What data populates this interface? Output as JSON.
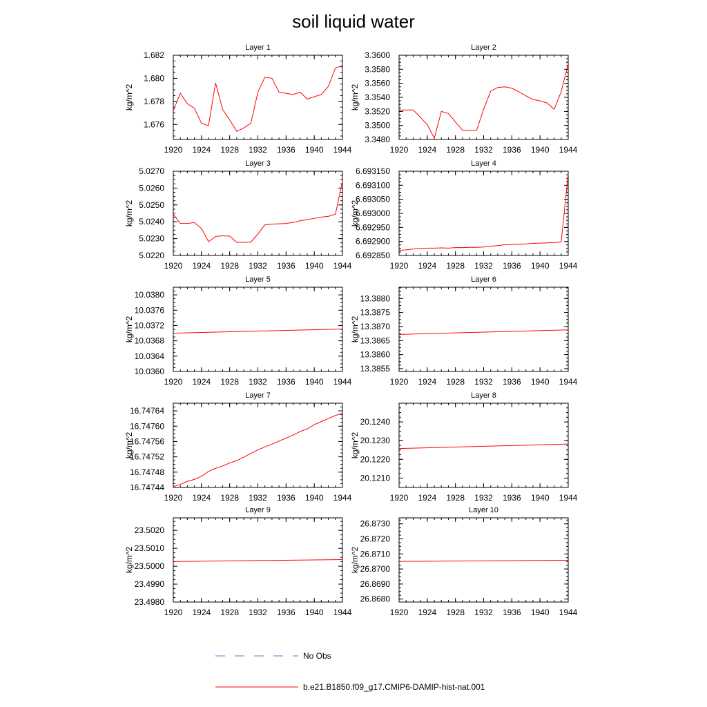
{
  "figure_title": "soil liquid water",
  "legend": [
    {
      "label": "No Obs",
      "color": "#6a6ad8",
      "style": "dashed"
    },
    {
      "label": "b.e21.B1850.f09_g17.CMIP6-DAMIP-hist-nat.001",
      "color": "#ff0000",
      "style": "solid"
    }
  ],
  "chart_data": [
    {
      "type": "line",
      "title": "Layer 1",
      "ylabel": "kg/m^2",
      "xlim": [
        1920,
        1944
      ],
      "xticks": [
        1920,
        1924,
        1928,
        1932,
        1936,
        1940,
        1944
      ],
      "xtick_labels": [
        "1920",
        "1924",
        "1928",
        "1932",
        "1936",
        "1940",
        "1944"
      ],
      "ylim": [
        1.6747,
        1.682
      ],
      "yticks": [
        1.676,
        1.678,
        1.68,
        1.682
      ],
      "ytick_labels": [
        "1.676",
        "1.678",
        "1.680",
        "1.682"
      ],
      "series": [
        {
          "color": "#ff0000",
          "x": [
            1920,
            1921,
            1922,
            1923,
            1924,
            1925,
            1926,
            1927,
            1928,
            1929,
            1930,
            1931,
            1932,
            1933,
            1934,
            1935,
            1936,
            1937,
            1938,
            1939,
            1940,
            1941,
            1942,
            1943,
            1944
          ],
          "values": [
            1.6772,
            1.6787,
            1.6778,
            1.6774,
            1.6761,
            1.6759,
            1.6796,
            1.6773,
            1.6764,
            1.6754,
            1.6757,
            1.6761,
            1.6788,
            1.6801,
            1.68,
            1.6788,
            1.6787,
            1.6786,
            1.6788,
            1.6782,
            1.6784,
            1.6786,
            1.6793,
            1.6809,
            1.6811
          ]
        }
      ]
    },
    {
      "type": "line",
      "title": "Layer 2",
      "ylabel": "kg/m^2",
      "xlim": [
        1920,
        1944
      ],
      "xticks": [
        1920,
        1924,
        1928,
        1932,
        1936,
        1940,
        1944
      ],
      "xtick_labels": [
        "1920",
        "1924",
        "1928",
        "1932",
        "1936",
        "1940",
        "1944"
      ],
      "ylim": [
        3.348,
        3.36
      ],
      "yticks": [
        3.348,
        3.35,
        3.352,
        3.354,
        3.356,
        3.358,
        3.36
      ],
      "ytick_labels": [
        "3.3480",
        "3.3500",
        "3.3520",
        "3.3540",
        "3.3560",
        "3.3580",
        "3.3600"
      ],
      "series": [
        {
          "color": "#ff0000",
          "x": [
            1920,
            1921,
            1922,
            1923,
            1924,
            1925,
            1926,
            1927,
            1928,
            1929,
            1930,
            1931,
            1932,
            1933,
            1934,
            1935,
            1936,
            1937,
            1938,
            1939,
            1940,
            1941,
            1942,
            1943,
            1944
          ],
          "values": [
            3.3522,
            3.3522,
            3.3522,
            3.3512,
            3.3501,
            3.3482,
            3.352,
            3.3517,
            3.3505,
            3.3493,
            3.3493,
            3.3493,
            3.3523,
            3.3549,
            3.3554,
            3.3555,
            3.3553,
            3.3548,
            3.3542,
            3.3537,
            3.3535,
            3.3532,
            3.3523,
            3.3548,
            3.3588
          ]
        }
      ]
    },
    {
      "type": "line",
      "title": "Layer 3",
      "ylabel": "kg/m^2",
      "xlim": [
        1920,
        1944
      ],
      "xticks": [
        1920,
        1924,
        1928,
        1932,
        1936,
        1940,
        1944
      ],
      "xtick_labels": [
        "1920",
        "1924",
        "1928",
        "1932",
        "1936",
        "1940",
        "1944"
      ],
      "ylim": [
        5.022,
        5.027
      ],
      "yticks": [
        5.022,
        5.023,
        5.024,
        5.025,
        5.026,
        5.027
      ],
      "ytick_labels": [
        "5.0220",
        "5.0230",
        "5.0240",
        "5.0250",
        "5.0260",
        "5.0270"
      ],
      "series": [
        {
          "color": "#ff0000",
          "x": [
            1920,
            1921,
            1922,
            1923,
            1924,
            1925,
            1926,
            1927,
            1928,
            1929,
            1930,
            1931,
            1932,
            1933,
            1934,
            1935,
            1936,
            1937,
            1938,
            1939,
            1940,
            1941,
            1942,
            1943,
            1944
          ],
          "values": [
            5.02445,
            5.0239,
            5.0239,
            5.02395,
            5.0236,
            5.02282,
            5.02313,
            5.02317,
            5.02315,
            5.02278,
            5.02278,
            5.02279,
            5.02327,
            5.02382,
            5.02386,
            5.02388,
            5.0239,
            5.02396,
            5.02406,
            5.02413,
            5.0242,
            5.02428,
            5.02432,
            5.02445,
            5.0264
          ]
        }
      ]
    },
    {
      "type": "line",
      "title": "Layer 4",
      "ylabel": "kg/m^2",
      "xlim": [
        1920,
        1944
      ],
      "xticks": [
        1920,
        1924,
        1928,
        1932,
        1936,
        1940,
        1944
      ],
      "xtick_labels": [
        "1920",
        "1924",
        "1928",
        "1932",
        "1936",
        "1940",
        "1944"
      ],
      "ylim": [
        6.69285,
        6.69315
      ],
      "yticks": [
        6.69285,
        6.6929,
        6.69295,
        6.693,
        6.69305,
        6.6931,
        6.69315
      ],
      "ytick_labels": [
        "6.692850",
        "6.692900",
        "6.692950",
        "6.693000",
        "6.693050",
        "6.693100",
        "6.693150"
      ],
      "series": [
        {
          "color": "#ff0000",
          "x": [
            1920,
            1921,
            1922,
            1923,
            1924,
            1925,
            1926,
            1927,
            1928,
            1929,
            1930,
            1931,
            1932,
            1933,
            1934,
            1935,
            1936,
            1937,
            1938,
            1939,
            1940,
            1941,
            1942,
            1943,
            1944
          ],
          "values": [
            6.692868,
            6.69287,
            6.692873,
            6.692875,
            6.692876,
            6.692876,
            6.692877,
            6.692876,
            6.692878,
            6.692878,
            6.692879,
            6.692879,
            6.69288,
            6.692883,
            6.692885,
            6.692888,
            6.692889,
            6.69289,
            6.692891,
            6.692893,
            6.692894,
            6.692895,
            6.692896,
            6.692898,
            6.69314
          ]
        }
      ]
    },
    {
      "type": "line",
      "title": "Layer 5",
      "ylabel": "kg/m^2",
      "xlim": [
        1920,
        1944
      ],
      "xticks": [
        1920,
        1924,
        1928,
        1932,
        1936,
        1940,
        1944
      ],
      "xtick_labels": [
        "1920",
        "1924",
        "1928",
        "1932",
        "1936",
        "1940",
        "1944"
      ],
      "ylim": [
        10.036,
        10.0382
      ],
      "yticks": [
        10.036,
        10.0364,
        10.0368,
        10.0372,
        10.0376,
        10.038
      ],
      "ytick_labels": [
        "10.0360",
        "10.0364",
        "10.0368",
        "10.0372",
        "10.0376",
        "10.0380"
      ],
      "series": [
        {
          "color": "#ff0000",
          "x": [
            1920,
            1944
          ],
          "values": [
            10.037,
            10.03711
          ]
        }
      ]
    },
    {
      "type": "line",
      "title": "Layer 6",
      "ylabel": "kg/m^2",
      "xlim": [
        1920,
        1944
      ],
      "xticks": [
        1920,
        1924,
        1928,
        1932,
        1936,
        1940,
        1944
      ],
      "xtick_labels": [
        "1920",
        "1924",
        "1928",
        "1932",
        "1936",
        "1940",
        "1944"
      ],
      "ylim": [
        13.3854,
        13.3884
      ],
      "yticks": [
        13.3855,
        13.386,
        13.3865,
        13.387,
        13.3875,
        13.388
      ],
      "ytick_labels": [
        "13.3855",
        "13.3860",
        "13.3865",
        "13.3870",
        "13.3875",
        "13.3880"
      ],
      "series": [
        {
          "color": "#ff0000",
          "x": [
            1920,
            1944
          ],
          "values": [
            13.38672,
            13.38688
          ]
        }
      ]
    },
    {
      "type": "line",
      "title": "Layer 7",
      "ylabel": "kg/m^2",
      "xlim": [
        1920,
        1944
      ],
      "xticks": [
        1920,
        1924,
        1928,
        1932,
        1936,
        1940,
        1944
      ],
      "xtick_labels": [
        "1920",
        "1924",
        "1928",
        "1932",
        "1936",
        "1940",
        "1944"
      ],
      "ylim": [
        16.74744,
        16.74766
      ],
      "yticks": [
        16.74744,
        16.74748,
        16.74752,
        16.74756,
        16.7476,
        16.74764
      ],
      "ytick_labels": [
        "16.74744",
        "16.74748",
        "16.74752",
        "16.74756",
        "16.74760",
        "16.74764"
      ],
      "series": [
        {
          "color": "#ff0000",
          "x": [
            1920,
            1921,
            1922,
            1923,
            1924,
            1925,
            1926,
            1927,
            1928,
            1929,
            1930,
            1931,
            1932,
            1933,
            1934,
            1935,
            1936,
            1937,
            1938,
            1939,
            1940,
            1941,
            1942,
            1943,
            1944
          ],
          "values": [
            16.747442,
            16.747448,
            16.747456,
            16.747461,
            16.747469,
            16.747482,
            16.74749,
            16.747496,
            16.747504,
            16.74751,
            16.747519,
            16.747529,
            16.747538,
            16.747546,
            16.747553,
            16.747561,
            16.747569,
            16.747577,
            16.747586,
            16.747593,
            16.747604,
            16.747612,
            16.74762,
            16.747628,
            16.747634
          ]
        }
      ]
    },
    {
      "type": "line",
      "title": "Layer 8",
      "ylabel": "kg/m^2",
      "xlim": [
        1920,
        1944
      ],
      "xticks": [
        1920,
        1924,
        1928,
        1932,
        1936,
        1940,
        1944
      ],
      "xtick_labels": [
        "1920",
        "1924",
        "1928",
        "1932",
        "1936",
        "1940",
        "1944"
      ],
      "ylim": [
        20.1205,
        20.125
      ],
      "yticks": [
        20.121,
        20.122,
        20.123,
        20.124
      ],
      "ytick_labels": [
        "20.1210",
        "20.1220",
        "20.1230",
        "20.1240"
      ],
      "series": [
        {
          "color": "#ff0000",
          "x": [
            1920,
            1944
          ],
          "values": [
            20.12258,
            20.12282
          ]
        }
      ]
    },
    {
      "type": "line",
      "title": "Layer 9",
      "ylabel": "kg/m^2",
      "xlim": [
        1920,
        1944
      ],
      "xticks": [
        1920,
        1924,
        1928,
        1932,
        1936,
        1940,
        1944
      ],
      "xtick_labels": [
        "1920",
        "1924",
        "1928",
        "1932",
        "1936",
        "1940",
        "1944"
      ],
      "ylim": [
        23.498,
        23.5027
      ],
      "yticks": [
        23.498,
        23.499,
        23.5,
        23.501,
        23.502
      ],
      "ytick_labels": [
        "23.4980",
        "23.4990",
        "23.5000",
        "23.5010",
        "23.5020"
      ],
      "series": [
        {
          "color": "#ff0000",
          "x": [
            1920,
            1944
          ],
          "values": [
            23.50026,
            23.50037
          ]
        }
      ]
    },
    {
      "type": "line",
      "title": "Layer 10",
      "ylabel": "kg/m^2",
      "xlim": [
        1920,
        1944
      ],
      "xticks": [
        1920,
        1924,
        1928,
        1932,
        1936,
        1940,
        1944
      ],
      "xtick_labels": [
        "1920",
        "1924",
        "1928",
        "1932",
        "1936",
        "1940",
        "1944"
      ],
      "ylim": [
        26.8678,
        26.8734
      ],
      "yticks": [
        26.868,
        26.869,
        26.87,
        26.871,
        26.872,
        26.873
      ],
      "ytick_labels": [
        "26.8680",
        "26.8690",
        "26.8700",
        "26.8710",
        "26.8720",
        "26.8730"
      ],
      "series": [
        {
          "color": "#ff0000",
          "x": [
            1920,
            1944
          ],
          "values": [
            26.8705,
            26.87058
          ]
        }
      ]
    }
  ]
}
